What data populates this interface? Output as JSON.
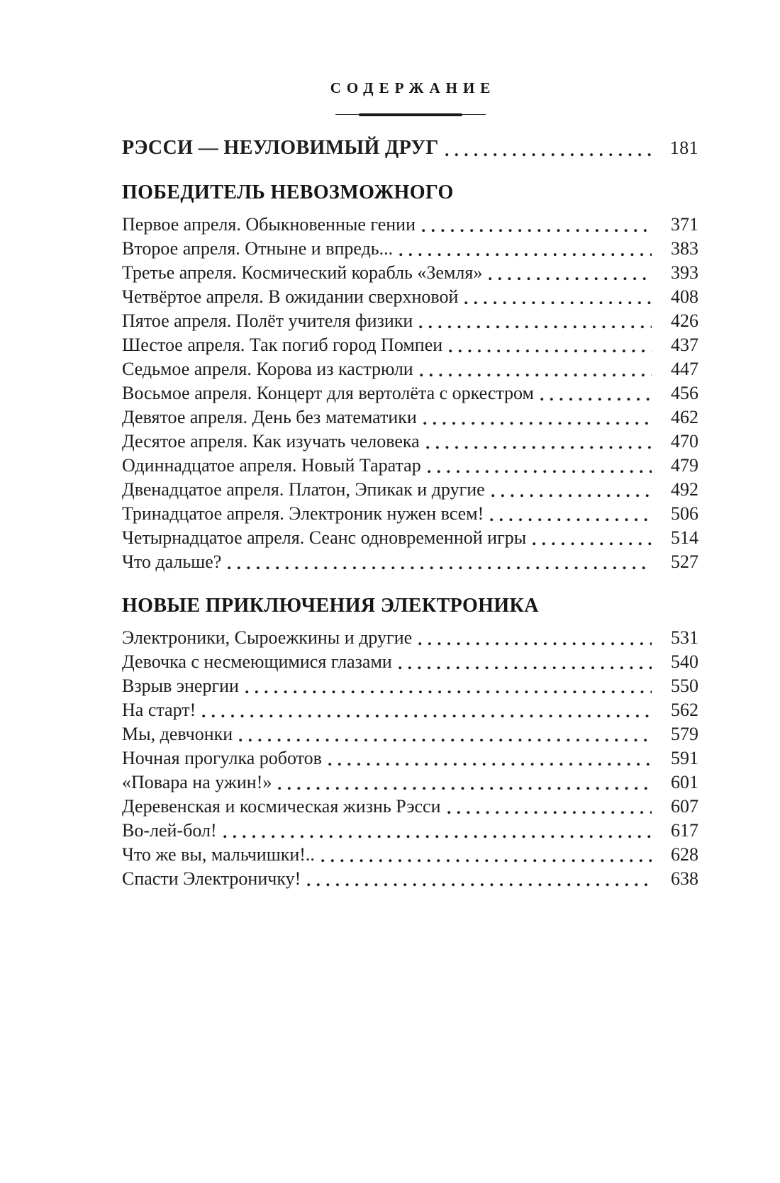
{
  "header": {
    "title": "СОДЕРЖАНИЕ"
  },
  "toc": {
    "standalone": {
      "title": "РЭССИ — НЕУЛОВИМЫЙ ДРУГ",
      "page": "181"
    },
    "sections": [
      {
        "heading": "ПОБЕДИТЕЛЬ НЕВОЗМОЖНОГО",
        "entries": [
          {
            "title": "Первое апреля. Обыкновенные гении",
            "page": "371"
          },
          {
            "title": "Второе апреля. Отныне и впредь...",
            "page": "383"
          },
          {
            "title": "Третье апреля. Космический корабль «Земля»",
            "page": "393"
          },
          {
            "title": "Четвёртое апреля. В ожидании сверхновой",
            "page": "408"
          },
          {
            "title": "Пятое апреля. Полёт учителя физики",
            "page": "426"
          },
          {
            "title": "Шестое апреля. Так погиб город Помпеи",
            "page": "437"
          },
          {
            "title": "Седьмое апреля. Корова из кастрюли",
            "page": "447"
          },
          {
            "title": "Восьмое апреля. Концерт для вертолёта с оркестром",
            "page": "456"
          },
          {
            "title": "Девятое апреля. День без математики",
            "page": "462"
          },
          {
            "title": "Десятое апреля. Как изучать человека",
            "page": "470"
          },
          {
            "title": "Одиннадцатое апреля. Новый Таратар",
            "page": "479"
          },
          {
            "title": "Двенадцатое апреля. Платон, Эпикак и другие",
            "page": "492"
          },
          {
            "title": "Тринадцатое апреля. Электроник нужен всем!",
            "page": "506"
          },
          {
            "title": "Четырнадцатое апреля. Сеанс одновременной игры",
            "page": "514"
          },
          {
            "title": "Что дальше?",
            "page": "527"
          }
        ]
      },
      {
        "heading": "НОВЫЕ ПРИКЛЮЧЕНИЯ ЭЛЕКТРОНИКА",
        "entries": [
          {
            "title": "Электроники, Сыроежкины и другие",
            "page": "531"
          },
          {
            "title": "Девочка с несмеющимися глазами",
            "page": "540"
          },
          {
            "title": "Взрыв энергии",
            "page": "550"
          },
          {
            "title": "На старт!",
            "page": "562"
          },
          {
            "title": "Мы, девчонки",
            "page": "579"
          },
          {
            "title": "Ночная прогулка роботов",
            "page": "591"
          },
          {
            "title": "«Повара на ужин!»",
            "page": "601"
          },
          {
            "title": "Деревенская и космическая жизнь Рэсси",
            "page": "607"
          },
          {
            "title": "Во-лей-бол!",
            "page": "617"
          },
          {
            "title": "Что же вы, мальчишки!..",
            "page": "628"
          },
          {
            "title": "Спасти Электроничку!",
            "page": "638"
          }
        ]
      }
    ]
  }
}
